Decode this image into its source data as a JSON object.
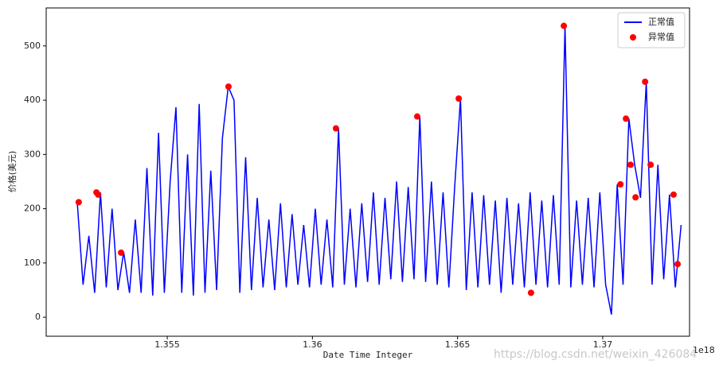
{
  "chart_data": {
    "type": "line_scatter",
    "xlabel": "Date Time Integer",
    "ylabel": "价格(美元)",
    "x_offset_label": "1e18",
    "watermark": "https://blog.csdn.net/weixin_426084",
    "xlim": [
      1.35083,
      1.37299
    ],
    "xticks": [
      1.355,
      1.36,
      1.365,
      1.37
    ],
    "ylim": [
      -35,
      570
    ],
    "yticks": [
      0,
      100,
      200,
      300,
      400,
      500
    ],
    "legend": "upper right",
    "series": [
      {
        "name": "正常值",
        "color": "#0000ff",
        "kind": "line",
        "x": [
          1.3519,
          1.3521,
          1.3523,
          1.3525,
          1.3527,
          1.3529,
          1.3531,
          1.3533,
          1.3535,
          1.3537,
          1.3539,
          1.3541,
          1.3543,
          1.3545,
          1.3547,
          1.3549,
          1.3551,
          1.3553,
          1.3555,
          1.3557,
          1.3559,
          1.3561,
          1.3563,
          1.3565,
          1.3567,
          1.3569,
          1.3571,
          1.3573,
          1.3575,
          1.3577,
          1.3579,
          1.3581,
          1.3583,
          1.3585,
          1.3587,
          1.3589,
          1.3591,
          1.3593,
          1.3595,
          1.3597,
          1.3599,
          1.3601,
          1.3603,
          1.3605,
          1.3607,
          1.3609,
          1.3611,
          1.3613,
          1.3615,
          1.3617,
          1.3619,
          1.3621,
          1.3623,
          1.3625,
          1.3627,
          1.3629,
          1.3631,
          1.3633,
          1.3635,
          1.3637,
          1.3639,
          1.3641,
          1.3643,
          1.3645,
          1.3647,
          1.3649,
          1.3651,
          1.3653,
          1.3655,
          1.3657,
          1.3659,
          1.3661,
          1.3663,
          1.3665,
          1.3667,
          1.3669,
          1.3671,
          1.3673,
          1.3675,
          1.3677,
          1.3679,
          1.3681,
          1.3683,
          1.3685,
          1.3687,
          1.3689,
          1.3691,
          1.3693,
          1.3695,
          1.3697,
          1.3699,
          1.3701,
          1.3703,
          1.3705,
          1.3707,
          1.3709,
          1.3711,
          1.3713,
          1.3715,
          1.3717,
          1.3719,
          1.3721,
          1.3723,
          1.3725,
          1.3727
        ],
        "values": [
          212,
          60,
          150,
          45,
          230,
          55,
          200,
          50,
          120,
          45,
          180,
          45,
          275,
          40,
          340,
          45,
          250,
          387,
          45,
          300,
          40,
          393,
          45,
          270,
          50,
          330,
          425,
          400,
          45,
          295,
          50,
          220,
          55,
          180,
          50,
          210,
          55,
          190,
          60,
          170,
          55,
          200,
          60,
          180,
          55,
          348,
          60,
          200,
          55,
          210,
          65,
          230,
          60,
          220,
          70,
          250,
          65,
          240,
          70,
          370,
          65,
          250,
          60,
          230,
          55,
          240,
          403,
          50,
          230,
          55,
          225,
          60,
          215,
          45,
          220,
          60,
          210,
          55,
          230,
          60,
          215,
          55,
          225,
          60,
          537,
          55,
          215,
          60,
          220,
          55,
          230,
          60,
          5,
          245,
          60,
          366,
          281,
          220,
          434,
          60,
          281,
          70,
          226,
          55,
          170
        ]
      },
      {
        "name": "异常值",
        "color": "#ff0000",
        "kind": "scatter",
        "x": [
          1.35195,
          1.35256,
          1.35262,
          1.35341,
          1.35711,
          1.36081,
          1.36361,
          1.36504,
          1.36753,
          1.36866,
          1.37061,
          1.3708,
          1.37096,
          1.37113,
          1.37146,
          1.37165,
          1.37244,
          1.37258
        ],
        "values": [
          212,
          230,
          226,
          119,
          425,
          348,
          370,
          403,
          45,
          537,
          245,
          366,
          281,
          221,
          434,
          281,
          226,
          98
        ]
      }
    ]
  }
}
